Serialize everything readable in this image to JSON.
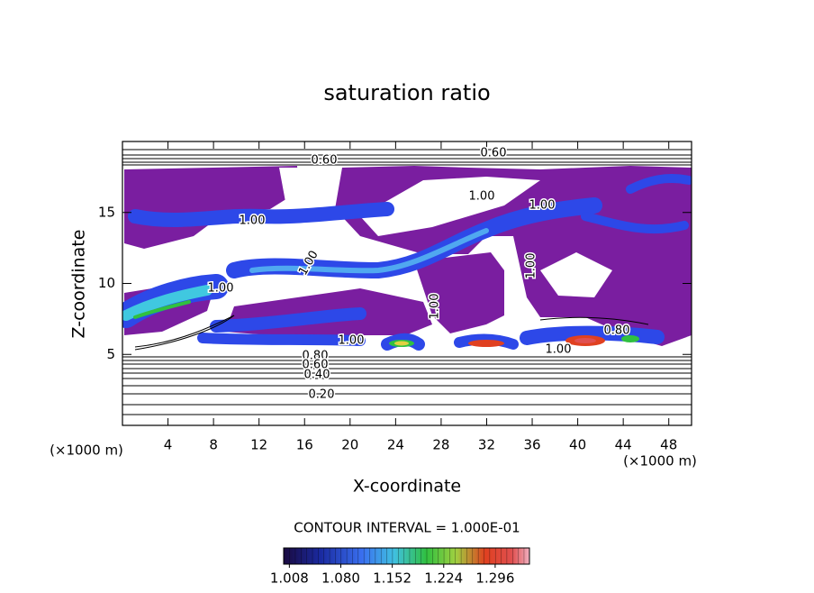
{
  "chart_data": {
    "type": "contour",
    "title": "saturation ratio",
    "x_label": "X-coordinate",
    "y_label": "Z-coordinate",
    "x_unit_label": "(×1000 m)",
    "xlim": [
      0,
      50
    ],
    "xticks": [
      4,
      8,
      12,
      16,
      20,
      24,
      28,
      32,
      36,
      40,
      44,
      48
    ],
    "ylim": [
      0,
      20
    ],
    "yticks": [
      5,
      10,
      15
    ],
    "contour_labels": [
      "0.60",
      "0.60",
      "1.00",
      "1.00",
      "1.00",
      "1.00",
      "1.00",
      "1.00",
      "1.00",
      "1.00",
      "0.80",
      "0.60",
      "0.40",
      "0.20",
      "1.00",
      "0.80"
    ],
    "colorbar": {
      "title": "CONTOUR INTERVAL = 1.000E-01",
      "clim": [
        1.0,
        1.344
      ],
      "ticks": [
        1.008,
        {
          "value": 1.08,
          "label": "1.080"
        },
        1.152,
        1.224,
        1.296
      ]
    }
  }
}
